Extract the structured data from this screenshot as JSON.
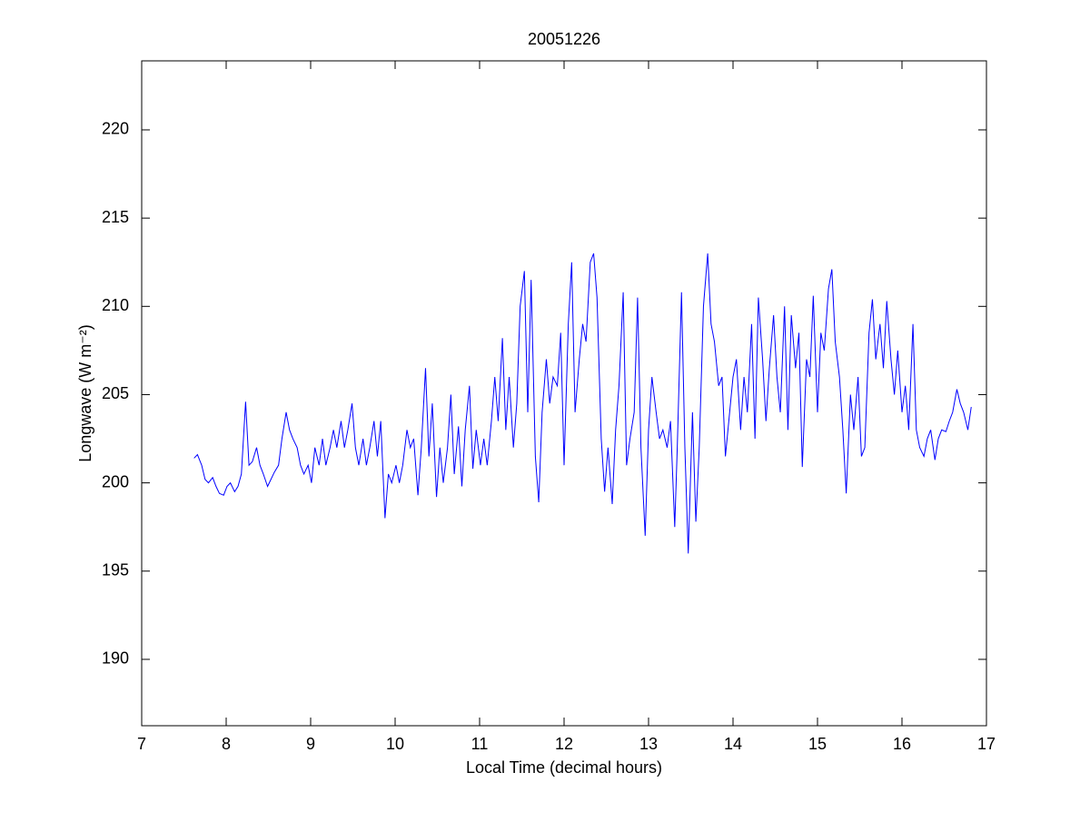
{
  "chart_data": {
    "type": "line",
    "title": "20051226",
    "xlabel": "Local Time (decimal hours)",
    "ylabel": "Longwave (W m⁻²)",
    "xlim": [
      7,
      17
    ],
    "ylim": [
      186.24,
      223.91
    ],
    "xticks": [
      7,
      8,
      9,
      10,
      11,
      12,
      13,
      14,
      15,
      16,
      17
    ],
    "yticks": [
      190,
      195,
      200,
      205,
      210,
      215,
      220
    ],
    "grid": false,
    "x": [
      7.62,
      7.66,
      7.71,
      7.75,
      7.79,
      7.84,
      7.88,
      7.92,
      7.97,
      8.01,
      8.05,
      8.1,
      8.14,
      8.18,
      8.23,
      8.27,
      8.31,
      8.36,
      8.4,
      8.44,
      8.49,
      8.53,
      8.57,
      8.62,
      8.66,
      8.71,
      8.75,
      8.79,
      8.84,
      8.88,
      8.92,
      8.97,
      9.01,
      9.05,
      9.1,
      9.14,
      9.18,
      9.23,
      9.27,
      9.31,
      9.36,
      9.4,
      9.44,
      9.49,
      9.53,
      9.57,
      9.62,
      9.66,
      9.7,
      9.75,
      9.79,
      9.83,
      9.88,
      9.92,
      9.96,
      10.01,
      10.05,
      10.09,
      10.14,
      10.18,
      10.22,
      10.27,
      10.31,
      10.36,
      10.4,
      10.44,
      10.49,
      10.53,
      10.57,
      10.62,
      10.66,
      10.7,
      10.75,
      10.79,
      10.83,
      10.88,
      10.92,
      10.96,
      11.01,
      11.05,
      11.09,
      11.14,
      11.18,
      11.22,
      11.27,
      11.31,
      11.35,
      11.4,
      11.44,
      11.48,
      11.53,
      11.57,
      11.61,
      11.66,
      11.7,
      11.74,
      11.79,
      11.83,
      11.87,
      11.92,
      11.96,
      12.0,
      12.05,
      12.09,
      12.13,
      12.18,
      12.22,
      12.26,
      12.31,
      12.35,
      12.39,
      12.44,
      12.48,
      12.52,
      12.57,
      12.61,
      12.65,
      12.7,
      12.74,
      12.78,
      12.83,
      12.87,
      12.91,
      12.96,
      13.0,
      13.04,
      13.09,
      13.13,
      13.17,
      13.22,
      13.26,
      13.31,
      13.34,
      13.39,
      13.43,
      13.47,
      13.52,
      13.56,
      13.6,
      13.65,
      13.7,
      13.74,
      13.78,
      13.83,
      13.87,
      13.91,
      13.96,
      14.0,
      14.04,
      14.09,
      14.13,
      14.17,
      14.22,
      14.26,
      14.3,
      14.35,
      14.39,
      14.43,
      14.48,
      14.52,
      14.56,
      14.61,
      14.65,
      14.69,
      14.74,
      14.78,
      14.82,
      14.87,
      14.91,
      14.95,
      15.0,
      15.04,
      15.08,
      15.13,
      15.17,
      15.21,
      15.26,
      15.3,
      15.34,
      15.39,
      15.43,
      15.48,
      15.52,
      15.56,
      15.61,
      15.65,
      15.69,
      15.74,
      15.78,
      15.82,
      15.87,
      15.91,
      15.95,
      16.0,
      16.04,
      16.08,
      16.13,
      16.17,
      16.21,
      16.26,
      16.3,
      16.34,
      16.39,
      16.43,
      16.47,
      16.52,
      16.56,
      16.6,
      16.65,
      16.69,
      16.73,
      16.78,
      16.82
    ],
    "series": [
      {
        "color": "#0000ff",
        "values": [
          201.4,
          201.6,
          201,
          200.2,
          200,
          200.3,
          199.8,
          199.4,
          199.3,
          199.8,
          200,
          199.5,
          199.8,
          200.5,
          204.6,
          201,
          201.2,
          202,
          201,
          200.5,
          199.8,
          200.2,
          200.6,
          201,
          202.5,
          204,
          203,
          202.5,
          202,
          201,
          200.5,
          201,
          200,
          202,
          201,
          202.5,
          201,
          202,
          203,
          202,
          203.5,
          202,
          203,
          204.5,
          202,
          201,
          202.5,
          201,
          202,
          203.5,
          201.5,
          203.5,
          198,
          200.5,
          200,
          201,
          200,
          201,
          203,
          202,
          202.5,
          199.3,
          202,
          206.5,
          201.5,
          204.5,
          199.2,
          202,
          200,
          202,
          205,
          200.5,
          203.2,
          199.8,
          203,
          205.5,
          200.8,
          203,
          201,
          202.5,
          201,
          203.5,
          206,
          203.5,
          208.2,
          203,
          206,
          202,
          204.5,
          210,
          212,
          204,
          211.5,
          201.5,
          198.9,
          204,
          207,
          204.5,
          206,
          205.5,
          208.5,
          201,
          209,
          212.5,
          204,
          207,
          209,
          208,
          212.5,
          213,
          210.5,
          202.5,
          199.5,
          202,
          198.8,
          203,
          205.5,
          210.8,
          201,
          202.5,
          204,
          210.5,
          202,
          197,
          203,
          206,
          204,
          202.5,
          203,
          202,
          203.5,
          197.5,
          202,
          210.8,
          202,
          196,
          204,
          197.8,
          202,
          210,
          213,
          209,
          208,
          205.5,
          206,
          201.5,
          204,
          206,
          207,
          203,
          206,
          204,
          209,
          202.5,
          210.5,
          207,
          203.5,
          206.5,
          209.5,
          206,
          204,
          210,
          203,
          209.5,
          206.5,
          208.5,
          200.9,
          207,
          206,
          210.6,
          204,
          208.5,
          207.5,
          211,
          212.1,
          208,
          206,
          203,
          199.4,
          205,
          203,
          206,
          201.5,
          202,
          208.5,
          210.4,
          207,
          209,
          206.5,
          210.3,
          207,
          205,
          207.5,
          204,
          205.5,
          203,
          209,
          203,
          202,
          201.5,
          202.5,
          203,
          201.3,
          202.5,
          203,
          202.9,
          203.5,
          204,
          205.3,
          204.5,
          204,
          203,
          204.3
        ]
      }
    ]
  }
}
